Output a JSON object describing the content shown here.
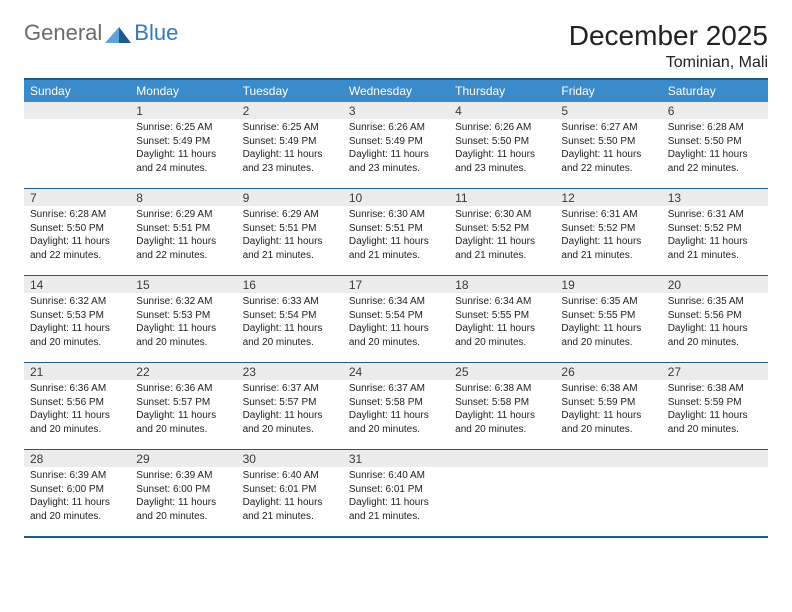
{
  "brand": {
    "general": "General",
    "blue": "Blue"
  },
  "colors": {
    "header_bar": "#3b8ac9",
    "header_text": "#ffffff",
    "border": "#1f5a8a",
    "daynum_bg": "#ececec",
    "text": "#222222",
    "logo_gray": "#6b6b6b",
    "logo_blue": "#2f7ac0",
    "tri_light": "#5ea4db",
    "tri_dark": "#1f5a8a"
  },
  "title": "December 2025",
  "location": "Tominian, Mali",
  "day_headers": [
    "Sunday",
    "Monday",
    "Tuesday",
    "Wednesday",
    "Thursday",
    "Friday",
    "Saturday"
  ],
  "weeks": [
    [
      {
        "n": "",
        "sr": "",
        "ss": "",
        "dl": ""
      },
      {
        "n": "1",
        "sr": "Sunrise: 6:25 AM",
        "ss": "Sunset: 5:49 PM",
        "dl": "Daylight: 11 hours and 24 minutes."
      },
      {
        "n": "2",
        "sr": "Sunrise: 6:25 AM",
        "ss": "Sunset: 5:49 PM",
        "dl": "Daylight: 11 hours and 23 minutes."
      },
      {
        "n": "3",
        "sr": "Sunrise: 6:26 AM",
        "ss": "Sunset: 5:49 PM",
        "dl": "Daylight: 11 hours and 23 minutes."
      },
      {
        "n": "4",
        "sr": "Sunrise: 6:26 AM",
        "ss": "Sunset: 5:50 PM",
        "dl": "Daylight: 11 hours and 23 minutes."
      },
      {
        "n": "5",
        "sr": "Sunrise: 6:27 AM",
        "ss": "Sunset: 5:50 PM",
        "dl": "Daylight: 11 hours and 22 minutes."
      },
      {
        "n": "6",
        "sr": "Sunrise: 6:28 AM",
        "ss": "Sunset: 5:50 PM",
        "dl": "Daylight: 11 hours and 22 minutes."
      }
    ],
    [
      {
        "n": "7",
        "sr": "Sunrise: 6:28 AM",
        "ss": "Sunset: 5:50 PM",
        "dl": "Daylight: 11 hours and 22 minutes."
      },
      {
        "n": "8",
        "sr": "Sunrise: 6:29 AM",
        "ss": "Sunset: 5:51 PM",
        "dl": "Daylight: 11 hours and 22 minutes."
      },
      {
        "n": "9",
        "sr": "Sunrise: 6:29 AM",
        "ss": "Sunset: 5:51 PM",
        "dl": "Daylight: 11 hours and 21 minutes."
      },
      {
        "n": "10",
        "sr": "Sunrise: 6:30 AM",
        "ss": "Sunset: 5:51 PM",
        "dl": "Daylight: 11 hours and 21 minutes."
      },
      {
        "n": "11",
        "sr": "Sunrise: 6:30 AM",
        "ss": "Sunset: 5:52 PM",
        "dl": "Daylight: 11 hours and 21 minutes."
      },
      {
        "n": "12",
        "sr": "Sunrise: 6:31 AM",
        "ss": "Sunset: 5:52 PM",
        "dl": "Daylight: 11 hours and 21 minutes."
      },
      {
        "n": "13",
        "sr": "Sunrise: 6:31 AM",
        "ss": "Sunset: 5:52 PM",
        "dl": "Daylight: 11 hours and 21 minutes."
      }
    ],
    [
      {
        "n": "14",
        "sr": "Sunrise: 6:32 AM",
        "ss": "Sunset: 5:53 PM",
        "dl": "Daylight: 11 hours and 20 minutes."
      },
      {
        "n": "15",
        "sr": "Sunrise: 6:32 AM",
        "ss": "Sunset: 5:53 PM",
        "dl": "Daylight: 11 hours and 20 minutes."
      },
      {
        "n": "16",
        "sr": "Sunrise: 6:33 AM",
        "ss": "Sunset: 5:54 PM",
        "dl": "Daylight: 11 hours and 20 minutes."
      },
      {
        "n": "17",
        "sr": "Sunrise: 6:34 AM",
        "ss": "Sunset: 5:54 PM",
        "dl": "Daylight: 11 hours and 20 minutes."
      },
      {
        "n": "18",
        "sr": "Sunrise: 6:34 AM",
        "ss": "Sunset: 5:55 PM",
        "dl": "Daylight: 11 hours and 20 minutes."
      },
      {
        "n": "19",
        "sr": "Sunrise: 6:35 AM",
        "ss": "Sunset: 5:55 PM",
        "dl": "Daylight: 11 hours and 20 minutes."
      },
      {
        "n": "20",
        "sr": "Sunrise: 6:35 AM",
        "ss": "Sunset: 5:56 PM",
        "dl": "Daylight: 11 hours and 20 minutes."
      }
    ],
    [
      {
        "n": "21",
        "sr": "Sunrise: 6:36 AM",
        "ss": "Sunset: 5:56 PM",
        "dl": "Daylight: 11 hours and 20 minutes."
      },
      {
        "n": "22",
        "sr": "Sunrise: 6:36 AM",
        "ss": "Sunset: 5:57 PM",
        "dl": "Daylight: 11 hours and 20 minutes."
      },
      {
        "n": "23",
        "sr": "Sunrise: 6:37 AM",
        "ss": "Sunset: 5:57 PM",
        "dl": "Daylight: 11 hours and 20 minutes."
      },
      {
        "n": "24",
        "sr": "Sunrise: 6:37 AM",
        "ss": "Sunset: 5:58 PM",
        "dl": "Daylight: 11 hours and 20 minutes."
      },
      {
        "n": "25",
        "sr": "Sunrise: 6:38 AM",
        "ss": "Sunset: 5:58 PM",
        "dl": "Daylight: 11 hours and 20 minutes."
      },
      {
        "n": "26",
        "sr": "Sunrise: 6:38 AM",
        "ss": "Sunset: 5:59 PM",
        "dl": "Daylight: 11 hours and 20 minutes."
      },
      {
        "n": "27",
        "sr": "Sunrise: 6:38 AM",
        "ss": "Sunset: 5:59 PM",
        "dl": "Daylight: 11 hours and 20 minutes."
      }
    ],
    [
      {
        "n": "28",
        "sr": "Sunrise: 6:39 AM",
        "ss": "Sunset: 6:00 PM",
        "dl": "Daylight: 11 hours and 20 minutes."
      },
      {
        "n": "29",
        "sr": "Sunrise: 6:39 AM",
        "ss": "Sunset: 6:00 PM",
        "dl": "Daylight: 11 hours and 20 minutes."
      },
      {
        "n": "30",
        "sr": "Sunrise: 6:40 AM",
        "ss": "Sunset: 6:01 PM",
        "dl": "Daylight: 11 hours and 21 minutes."
      },
      {
        "n": "31",
        "sr": "Sunrise: 6:40 AM",
        "ss": "Sunset: 6:01 PM",
        "dl": "Daylight: 11 hours and 21 minutes."
      },
      {
        "n": "",
        "sr": "",
        "ss": "",
        "dl": ""
      },
      {
        "n": "",
        "sr": "",
        "ss": "",
        "dl": ""
      },
      {
        "n": "",
        "sr": "",
        "ss": "",
        "dl": ""
      }
    ]
  ]
}
